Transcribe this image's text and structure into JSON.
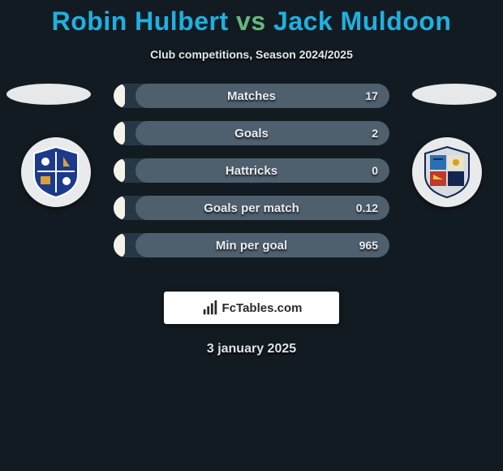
{
  "title": {
    "player1": "Robin Hulbert",
    "vs": "vs",
    "player2": "Jack Muldoon",
    "player1_color": "#1db1e0",
    "vs_color": "#66b97c",
    "player2_color": "#1db1e0",
    "fontsize": 32
  },
  "subtitle": "Club competitions, Season 2024/2025",
  "date": "3 january 2025",
  "background_color": "#131b22",
  "side_ellipse_color": "#e6e8e9",
  "crest_bg": "#e8eaec",
  "bars": {
    "track_color": "#273745",
    "track_width": 340,
    "left_fill_color": "#f5f3e9",
    "right_fill_color": "#4e5f6d",
    "label_fontsize": 15,
    "value_fontsize": 14,
    "rows": [
      {
        "label": "Matches",
        "right_value": "17",
        "left_pct": 4,
        "right_pct": 92
      },
      {
        "label": "Goals",
        "right_value": "2",
        "left_pct": 4,
        "right_pct": 92
      },
      {
        "label": "Hattricks",
        "right_value": "0",
        "left_pct": 4,
        "right_pct": 92
      },
      {
        "label": "Goals per match",
        "right_value": "0.12",
        "left_pct": 4,
        "right_pct": 92
      },
      {
        "label": "Min per goal",
        "right_value": "965",
        "left_pct": 4,
        "right_pct": 92
      }
    ]
  },
  "logo": {
    "text": "FcTables.com",
    "box_bg": "#ffffff",
    "text_color": "#2a2a2a"
  },
  "crests": {
    "left": {
      "name": "barrow-afc",
      "shield_fill": "#1c3a8b",
      "shield_border": "#ffffff",
      "accent": "#d9a13a"
    },
    "right": {
      "name": "club-crest",
      "shield_fill": "#d6dbe1",
      "shield_border": "#14244f",
      "q1": "#2b6fb3",
      "q2": "#e9e2c8",
      "q3": "#c0392b",
      "q4": "#14244f"
    }
  }
}
